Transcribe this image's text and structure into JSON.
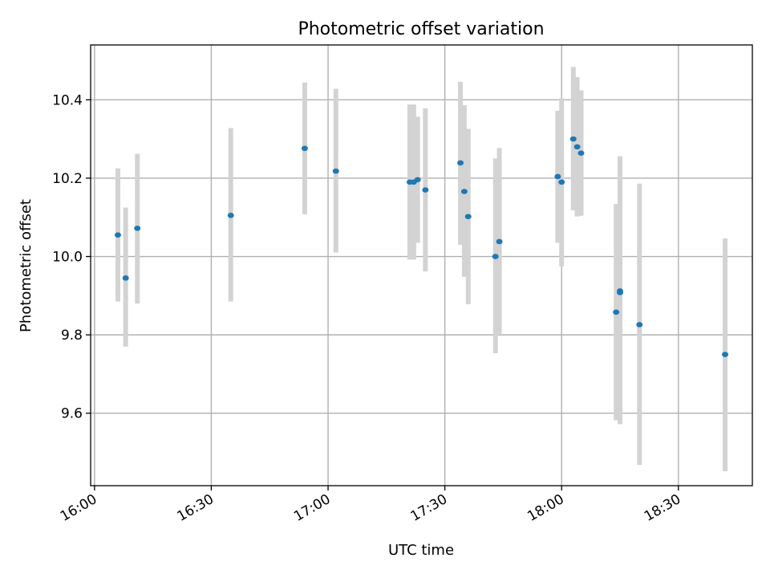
{
  "chart_data": {
    "type": "scatter",
    "title": "Photometric offset variation",
    "xlabel": "UTC time",
    "ylabel": "Photometric offset",
    "x_tick_labels": [
      "16:00",
      "16:30",
      "17:00",
      "17:30",
      "18:00",
      "18:30"
    ],
    "x_ticks": [
      "16:00",
      "16:30",
      "17:00",
      "17:30",
      "18:00",
      "18:30"
    ],
    "xlim": [
      "15:59",
      "18:49"
    ],
    "y_tick_labels": [
      "9.6",
      "9.8",
      "10.0",
      "10.2",
      "10.4"
    ],
    "y_ticks": [
      9.6,
      9.8,
      10.0,
      10.2,
      10.4
    ],
    "ylim": [
      9.415,
      10.54
    ],
    "grid": true,
    "point_color": "#1f77b4",
    "errorbar_color": "#d3d3d3",
    "series": [
      {
        "points": [
          {
            "x": "16:06",
            "y": 10.055,
            "ylow": 9.885,
            "yhigh": 10.225
          },
          {
            "x": "16:08",
            "y": 9.945,
            "ylow": 9.77,
            "yhigh": 10.125
          },
          {
            "x": "16:11",
            "y": 10.072,
            "ylow": 9.88,
            "yhigh": 10.262
          },
          {
            "x": "16:35",
            "y": 10.105,
            "ylow": 9.885,
            "yhigh": 10.328
          },
          {
            "x": "16:54",
            "y": 10.276,
            "ylow": 10.108,
            "yhigh": 10.444
          },
          {
            "x": "17:02",
            "y": 10.218,
            "ylow": 10.01,
            "yhigh": 10.428
          },
          {
            "x": "17:21",
            "y": 10.19,
            "ylow": 9.992,
            "yhigh": 10.388
          },
          {
            "x": "17:22",
            "y": 10.19,
            "ylow": 9.992,
            "yhigh": 10.388
          },
          {
            "x": "17:23",
            "y": 10.196,
            "ylow": 10.035,
            "yhigh": 10.357
          },
          {
            "x": "17:25",
            "y": 10.17,
            "ylow": 9.962,
            "yhigh": 10.378
          },
          {
            "x": "17:34",
            "y": 10.239,
            "ylow": 10.03,
            "yhigh": 10.446
          },
          {
            "x": "17:35",
            "y": 10.166,
            "ylow": 9.948,
            "yhigh": 10.386
          },
          {
            "x": "17:36",
            "y": 10.102,
            "ylow": 9.878,
            "yhigh": 10.326
          },
          {
            "x": "17:43",
            "y": 10.0,
            "ylow": 9.753,
            "yhigh": 10.25
          },
          {
            "x": "17:44",
            "y": 10.038,
            "ylow": 9.8,
            "yhigh": 10.277
          },
          {
            "x": "17:59",
            "y": 10.204,
            "ylow": 10.035,
            "yhigh": 10.372
          },
          {
            "x": "18:00",
            "y": 10.19,
            "ylow": 9.975,
            "yhigh": 10.404
          },
          {
            "x": "18:03",
            "y": 10.3,
            "ylow": 10.118,
            "yhigh": 10.484
          },
          {
            "x": "18:04",
            "y": 10.28,
            "ylow": 10.102,
            "yhigh": 10.458
          },
          {
            "x": "18:05",
            "y": 10.264,
            "ylow": 10.104,
            "yhigh": 10.424
          },
          {
            "x": "18:14",
            "y": 9.858,
            "ylow": 9.582,
            "yhigh": 10.134
          },
          {
            "x": "18:15",
            "y": 9.912,
            "ylow": 9.572,
            "yhigh": 10.256
          },
          {
            "x": "18:15",
            "y": 9.908,
            "ylow": 9.598,
            "yhigh": 10.222
          },
          {
            "x": "18:20",
            "y": 9.826,
            "ylow": 9.468,
            "yhigh": 10.186
          },
          {
            "x": "18:42",
            "y": 9.75,
            "ylow": 9.452,
            "yhigh": 10.046
          }
        ]
      }
    ]
  }
}
